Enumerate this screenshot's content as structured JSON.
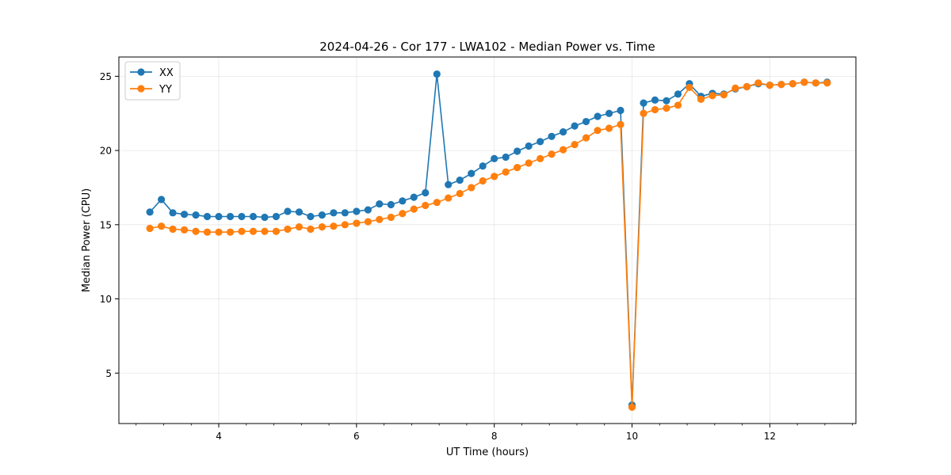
{
  "chart_data": {
    "type": "line",
    "title": "2024-04-26 - Cor 177 - LWA102 - Median Power vs. Time",
    "xlabel": "UT Time (hours)",
    "ylabel": "Median Power (CPU)",
    "xlim": [
      2.55,
      13.25
    ],
    "ylim": [
      1.6,
      26.3
    ],
    "xticks": [
      4,
      6,
      8,
      10,
      12
    ],
    "xtick_labels": [
      "4",
      "6",
      "8",
      "10",
      "12"
    ],
    "yticks": [
      5,
      10,
      15,
      20,
      25
    ],
    "ytick_labels": [
      "5",
      "10",
      "15",
      "20",
      "25"
    ],
    "grid": true,
    "legend_position": "top-left",
    "x": [
      3.0,
      3.167,
      3.333,
      3.5,
      3.667,
      3.833,
      4.0,
      4.167,
      4.333,
      4.5,
      4.667,
      4.833,
      5.0,
      5.167,
      5.333,
      5.5,
      5.667,
      5.833,
      6.0,
      6.167,
      6.333,
      6.5,
      6.667,
      6.833,
      7.0,
      7.167,
      7.333,
      7.5,
      7.667,
      7.833,
      8.0,
      8.167,
      8.333,
      8.5,
      8.667,
      8.833,
      9.0,
      9.167,
      9.333,
      9.5,
      9.667,
      9.833,
      10.0,
      10.167,
      10.333,
      10.5,
      10.667,
      10.833,
      11.0,
      11.167,
      11.333,
      11.5,
      11.667,
      11.833,
      12.0,
      12.167,
      12.333,
      12.5,
      12.667,
      12.833
    ],
    "series": [
      {
        "name": "XX",
        "color": "#1f77b4",
        "values": [
          15.85,
          16.7,
          15.8,
          15.7,
          15.65,
          15.55,
          15.55,
          15.55,
          15.55,
          15.55,
          15.5,
          15.55,
          15.9,
          15.85,
          15.55,
          15.65,
          15.8,
          15.8,
          15.9,
          16.0,
          16.4,
          16.35,
          16.6,
          16.85,
          17.15,
          25.15,
          17.7,
          18.0,
          18.45,
          18.95,
          19.45,
          19.55,
          19.95,
          20.3,
          20.6,
          20.95,
          21.25,
          21.65,
          21.95,
          22.3,
          22.5,
          22.7,
          2.85,
          23.2,
          23.4,
          23.35,
          23.8,
          24.5,
          23.65,
          23.85,
          23.8,
          24.15,
          24.3,
          24.5,
          24.4,
          24.45,
          24.5,
          24.6,
          24.55,
          24.6
        ]
      },
      {
        "name": "YY",
        "color": "#ff7f0e",
        "values": [
          14.75,
          14.9,
          14.7,
          14.65,
          14.55,
          14.5,
          14.5,
          14.5,
          14.55,
          14.55,
          14.55,
          14.55,
          14.7,
          14.85,
          14.7,
          14.85,
          14.9,
          15.0,
          15.1,
          15.2,
          15.35,
          15.5,
          15.75,
          16.05,
          16.3,
          16.5,
          16.8,
          17.1,
          17.5,
          17.95,
          18.25,
          18.55,
          18.85,
          19.15,
          19.45,
          19.75,
          20.05,
          20.4,
          20.85,
          21.35,
          21.5,
          21.75,
          2.7,
          22.5,
          22.75,
          22.85,
          23.05,
          24.25,
          23.45,
          23.7,
          23.75,
          24.2,
          24.3,
          24.55,
          24.4,
          24.45,
          24.5,
          24.6,
          24.55,
          24.55
        ]
      }
    ]
  }
}
